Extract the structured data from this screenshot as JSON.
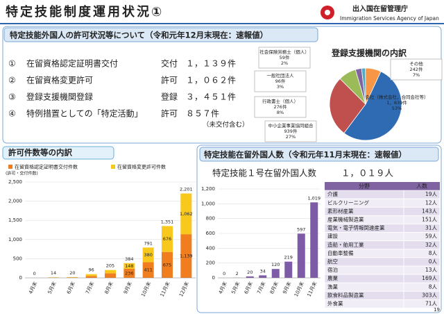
{
  "header": {
    "title": "特定技能制度運用状況①",
    "agency": "出入国在留管理庁",
    "agency_en": "Immigration Services Agency of Japan"
  },
  "permits": {
    "title": "特定技能外国人の許可状況等について（令和元年12月末現在：速報値）",
    "items": [
      {
        "num": "①",
        "label": "在留資格認定証明書交付",
        "kind": "交付",
        "count": "１，１３９件"
      },
      {
        "num": "②",
        "label": "在留資格変更許可",
        "kind": "許可",
        "count": "１，０６２件"
      },
      {
        "num": "③",
        "label": "登録支援機関登録",
        "kind": "登録",
        "count": "３，４５１件"
      },
      {
        "num": "④",
        "label": "特例措置としての「特定活動」",
        "kind": "許可",
        "count": "８５７件",
        "note": "（未交付含む）"
      }
    ]
  },
  "chart_data": [
    {
      "type": "pie",
      "title": "登録支援機関の内訳",
      "categories": [
        "会社（株式会社，合同会社等）",
        "中小企業事業協同組合",
        "行政書士（個人）",
        "一般社団法人",
        "社会保険労務士（個人）",
        "その他"
      ],
      "values": [
        1839,
        939,
        276,
        96,
        59,
        242
      ],
      "value_labels": [
        "1，839件",
        "939件",
        "276件",
        "96件",
        "59件",
        "242件"
      ],
      "percents": [
        53,
        27,
        8,
        3,
        2,
        7
      ],
      "percent_labels": [
        "53%",
        "27%",
        "8%",
        "3%",
        "2%",
        "7%"
      ],
      "colors": [
        "#2f6bb3",
        "#c0504d",
        "#9bbb59",
        "#8064a2",
        "#4bacc6",
        "#f79646"
      ]
    },
    {
      "type": "stacked_bar",
      "title": "許可件数等の内訳",
      "y_label": "(許可・交付件数)",
      "categories": [
        "4月末",
        "5月末",
        "6月末",
        "7月末",
        "8月末",
        "9月末",
        "10月末",
        "11月末",
        "12月末"
      ],
      "series": [
        {
          "name": "在留資格認定証明書交付件数",
          "color": "#f07d1e",
          "values": [
            0,
            6,
            10,
            50,
            120,
            236,
            411,
            675,
            1139
          ],
          "value_labels": [
            null,
            null,
            null,
            null,
            null,
            "236",
            "411",
            "675",
            "1,139"
          ]
        },
        {
          "name": "在留資格変更許可件数",
          "color": "#f8c81c",
          "values": [
            0,
            8,
            10,
            46,
            85,
            148,
            380,
            676,
            1062
          ],
          "value_labels": [
            null,
            null,
            null,
            null,
            null,
            "148",
            "380",
            "676",
            "1,062"
          ]
        }
      ],
      "total_labels": [
        "0",
        "14",
        "20",
        "96",
        "205",
        "384",
        "791",
        "1,351",
        "2,201"
      ],
      "ylim": [
        0,
        2500
      ],
      "yticks": [
        0,
        500,
        {
          "value": 1000,
          "label": "1,000"
        },
        {
          "value": 1500,
          "label": "1,500"
        },
        {
          "value": 2000,
          "label": "2,000"
        },
        {
          "value": 2500,
          "label": "2,500"
        }
      ],
      "grid": true
    },
    {
      "type": "bar",
      "categories": [
        "4月末",
        "5月末",
        "6月末",
        "7月末",
        "8月末",
        "9月末",
        "10月末",
        "11月末"
      ],
      "values": [
        0,
        2,
        20,
        34,
        120,
        219,
        597,
        1019
      ],
      "value_labels": [
        "0",
        "2",
        "20",
        "34",
        "120",
        "219",
        "597",
        "1,019"
      ],
      "color": "#7d5ba6",
      "ylim": [
        0,
        1200
      ],
      "yticks": [
        0,
        200,
        400,
        600,
        800,
        {
          "value": 1000,
          "label": "1,000"
        },
        {
          "value": 1200,
          "label": "1,200"
        }
      ],
      "grid": true
    }
  ],
  "residents": {
    "title": "特定技能在留外国人数（令和元年11月末現在：速報値）",
    "subtitle": "特定技能１号在留外国人数",
    "total": "１，０１９人"
  },
  "table": {
    "header": [
      "分野",
      "人数"
    ],
    "rows": [
      [
        "介護",
        "19人"
      ],
      [
        "ビルクリーニング",
        "12人"
      ],
      [
        "素形材産業",
        "143人"
      ],
      [
        "産業機械製造業",
        "151人"
      ],
      [
        "電気・電子情報関連産業",
        "31人"
      ],
      [
        "建設",
        "59人"
      ],
      [
        "造船・舶用工業",
        "32人"
      ],
      [
        "自動車整備",
        "8人"
      ],
      [
        "航空",
        "0人"
      ],
      [
        "宿泊",
        "13人"
      ],
      [
        "農業",
        "169人"
      ],
      [
        "漁業",
        "8人"
      ],
      [
        "飲食料品製造業",
        "303人"
      ],
      [
        "外食業",
        "71人"
      ]
    ]
  },
  "page_number": "19"
}
